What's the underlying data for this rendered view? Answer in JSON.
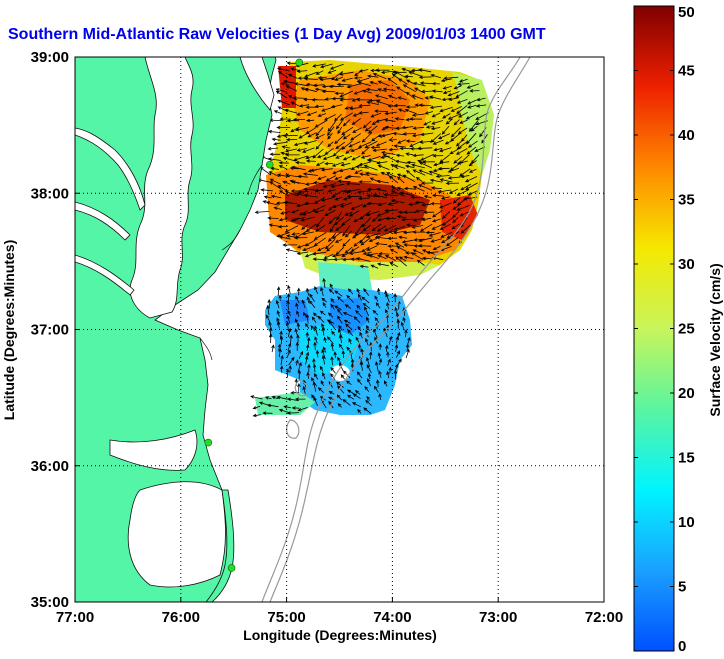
{
  "title": "Southern Mid-Atlantic Raw Velocities (1 Day Avg) 2009/01/03 1400 GMT",
  "colors": {
    "title": "#0000ee",
    "land": "#55f5a8",
    "coast": "#111111",
    "bathymetry": "#999999",
    "grid": "#000000",
    "station": "#22dd22",
    "arrow": "#000000"
  },
  "map": {
    "xlabel": "Longitude (Degrees:Minutes)",
    "ylabel": "Latitude (Degrees:Minutes)",
    "lon_range": [
      -77,
      -72
    ],
    "lat_range": [
      35,
      39
    ],
    "x_ticks": [
      {
        "value": -77,
        "label": "77:00"
      },
      {
        "value": -76,
        "label": "76:00"
      },
      {
        "value": -75,
        "label": "75:00"
      },
      {
        "value": -74,
        "label": "74:00"
      },
      {
        "value": -73,
        "label": "73:00"
      },
      {
        "value": -72,
        "label": "72:00"
      }
    ],
    "y_ticks": [
      {
        "value": 39,
        "label": "39:00"
      },
      {
        "value": 38,
        "label": "38:00"
      },
      {
        "value": 37,
        "label": "37:00"
      },
      {
        "value": 36,
        "label": "36:00"
      },
      {
        "value": 35,
        "label": "35:00"
      }
    ],
    "grid": "dotted",
    "stations": [
      {
        "lon": -74.88,
        "lat": 38.96
      },
      {
        "lon": -75.16,
        "lat": 38.21
      },
      {
        "lon": -75.74,
        "lat": 36.17
      },
      {
        "lon": -75.52,
        "lat": 35.25
      }
    ]
  },
  "colorbar": {
    "label": "Surface Velocity (cm/s)",
    "min": 0,
    "max": 50,
    "ticks": [
      {
        "value": 0,
        "label": "0"
      },
      {
        "value": 5,
        "label": "5"
      },
      {
        "value": 10,
        "label": "10"
      },
      {
        "value": 15,
        "label": "15"
      },
      {
        "value": 20,
        "label": "20"
      },
      {
        "value": 25,
        "label": "25"
      },
      {
        "value": 30,
        "label": "30"
      },
      {
        "value": 35,
        "label": "35"
      },
      {
        "value": 40,
        "label": "40"
      },
      {
        "value": 45,
        "label": "45"
      },
      {
        "value": 50,
        "label": "50"
      }
    ],
    "colormap": "jet"
  }
}
